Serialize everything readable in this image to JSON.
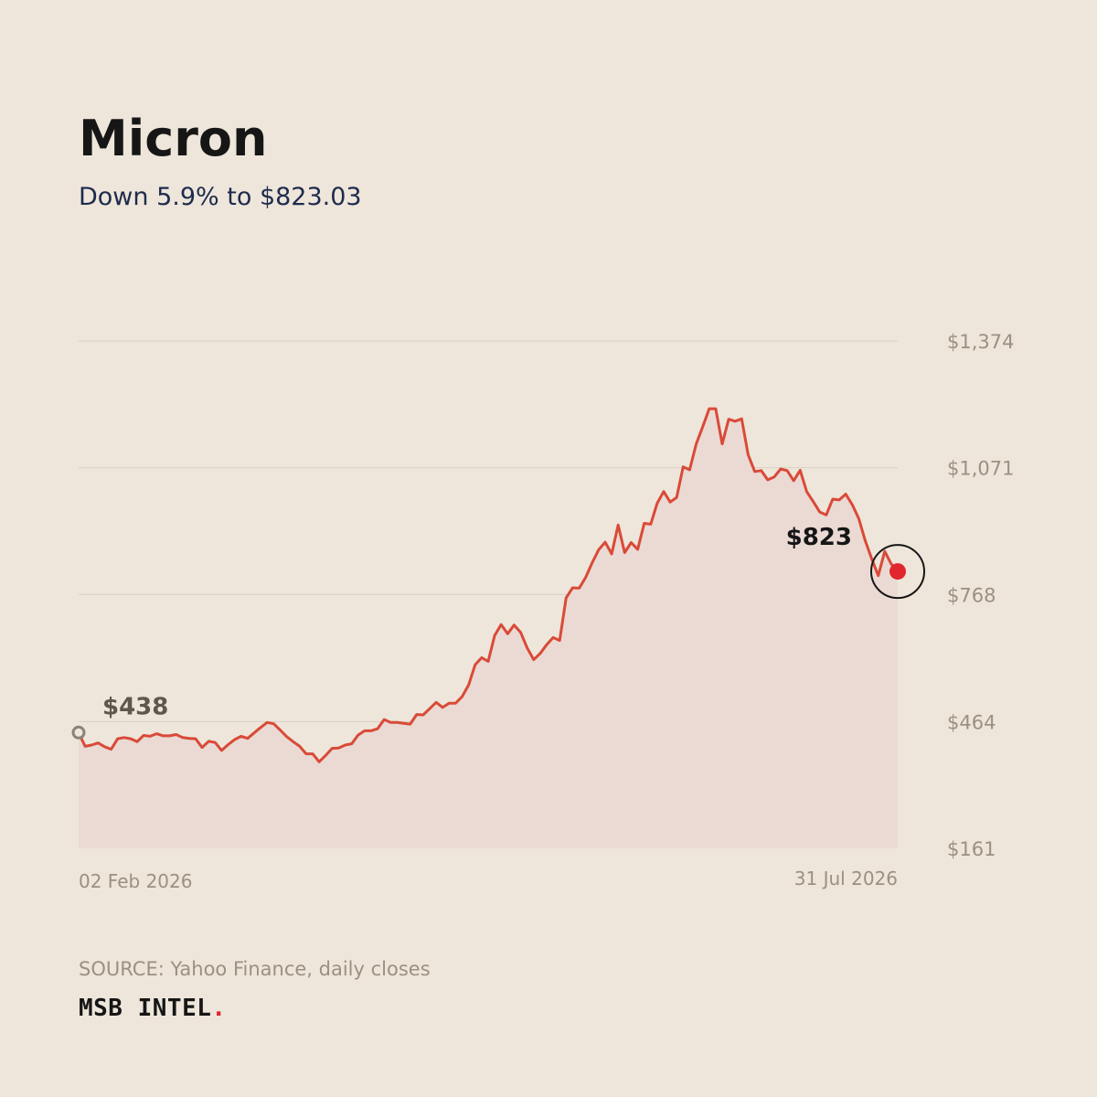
{
  "header": {
    "title": "Micron",
    "subtitle": "Down 5.9% to $823.03"
  },
  "footer": {
    "source": "SOURCE: Yahoo Finance, daily closes",
    "brand": "MSB INTEL",
    "brand_dot": "."
  },
  "colors": {
    "background": "#EEE6DA",
    "line": "#D94A38",
    "area_fill": "#EBDAD4",
    "end_marker": "#E0262E",
    "start_marker": "#8A8378",
    "grid": "#D8D0C4",
    "tick_text": "#9A9183",
    "subtitle": "#1E2B4D"
  },
  "chart_data": {
    "type": "area",
    "x_start_label": "02 Feb 2026",
    "x_end_label": "31 Jul 2026",
    "y_ticks": [
      "$1,374",
      "$1,071",
      "$768",
      "$464",
      "$161"
    ],
    "y_tick_values": [
      1374,
      1071,
      768,
      464,
      161
    ],
    "ylim": [
      161,
      1374
    ],
    "grid": true,
    "start_label": "$438",
    "end_label": "$823",
    "series": [
      {
        "values": [
          438,
          405,
          408,
          413,
          404,
          398,
          423,
          426,
          423,
          416,
          431,
          429,
          435,
          430,
          430,
          433,
          426,
          424,
          423,
          402,
          417,
          414,
          395,
          409,
          421,
          429,
          424,
          437,
          450,
          462,
          459,
          444,
          428,
          416,
          405,
          387,
          387,
          368,
          383,
          400,
          401,
          408,
          411,
          432,
          442,
          442,
          447,
          469,
          462,
          462,
          460,
          458,
          481,
          480,
          495,
          510,
          498,
          508,
          508,
          524,
          552,
          600,
          617,
          608,
          670,
          696,
          674,
          695,
          677,
          640,
          612,
          627,
          648,
          665,
          658,
          760,
          784,
          783,
          809,
          844,
          875,
          893,
          865,
          934,
          868,
          892,
          876,
          938,
          936,
          986,
          1014,
          989,
          1000,
          1073,
          1066,
          1128,
          1169,
          1212,
          1212,
          1128,
          1187,
          1182,
          1188,
          1102,
          1062,
          1064,
          1042,
          1049,
          1068,
          1064,
          1040,
          1065,
          1014,
          990,
          965,
          958,
          996,
          994,
          1008,
          983,
          950,
          897,
          853,
          813,
          871,
          841,
          823
        ]
      }
    ]
  }
}
